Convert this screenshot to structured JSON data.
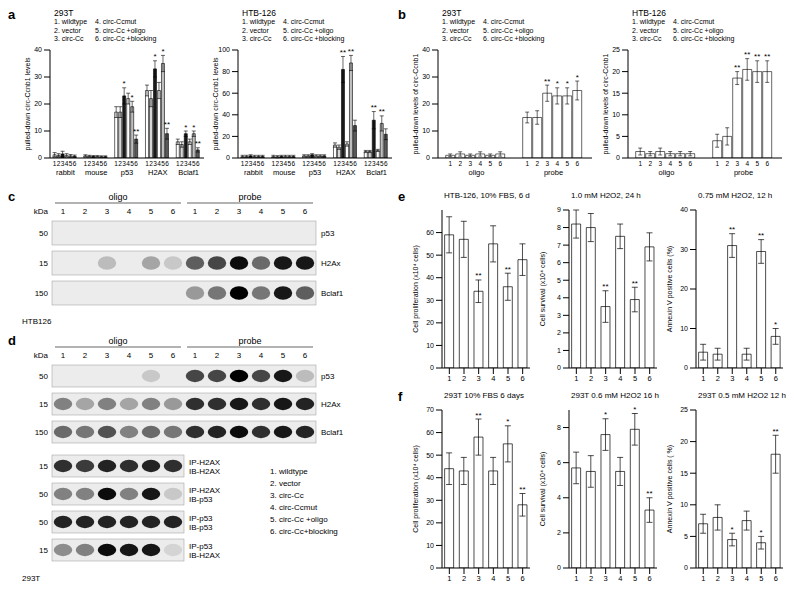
{
  "panel_labels": [
    "a",
    "b",
    "c",
    "d",
    "e",
    "f"
  ],
  "chart_data": [
    {
      "type": "bar",
      "title": "293T",
      "y_label": "pulled-down circ-Ccnb1 levels",
      "grid": false,
      "annotations": [
        "1. wildtype",
        "2. vector",
        "3. circ-Cc",
        "4. circ-Ccmut",
        "5. circ-Cc +oligo",
        "6. circ-Cc +blocking"
      ],
      "categories": [
        "rabbit",
        "mouse",
        "p53",
        "H2AX",
        "Bclaf1"
      ],
      "ylim": [
        0,
        40
      ],
      "yticks": [
        0,
        10,
        20,
        30,
        40
      ],
      "series": [
        {
          "name": "1",
          "color": "#ffffff",
          "values": [
            1.2,
            0.8,
            17,
            25,
            6
          ],
          "errors": [
            0.8,
            0.4,
            2,
            2,
            1
          ],
          "stars": [
            null,
            null,
            null,
            null,
            null
          ]
        },
        {
          "name": "2",
          "color": "#d9d9d9",
          "values": [
            1.0,
            0.7,
            17,
            22,
            5
          ],
          "errors": [
            0.6,
            0.3,
            2,
            3,
            1
          ],
          "stars": [
            null,
            null,
            null,
            null,
            null
          ]
        },
        {
          "name": "3",
          "color": "#1a1a1a",
          "values": [
            1.5,
            0.6,
            23,
            33,
            9
          ],
          "errors": [
            1,
            0.3,
            3,
            3,
            1
          ],
          "stars": [
            null,
            null,
            "*",
            "*",
            "*"
          ]
        },
        {
          "name": "4",
          "color": "#ffffff",
          "values": [
            1.0,
            0.6,
            22,
            25,
            6
          ],
          "errors": [
            0.6,
            0.3,
            2,
            3,
            1
          ],
          "stars": [
            null,
            null,
            null,
            null,
            null
          ]
        },
        {
          "name": "5",
          "color": "#bfbfbf",
          "values": [
            0.8,
            0.5,
            19,
            35,
            9
          ],
          "errors": [
            0.5,
            0.3,
            2,
            3,
            1
          ],
          "stars": [
            null,
            null,
            "*",
            "*",
            "*"
          ]
        },
        {
          "name": "6",
          "color": "#595959",
          "values": [
            0.7,
            0.5,
            7,
            9,
            3
          ],
          "errors": [
            0.4,
            0.3,
            1.5,
            2,
            0.8
          ],
          "stars": [
            null,
            null,
            "**",
            "**",
            "**"
          ]
        }
      ]
    },
    {
      "type": "bar",
      "title": "HTB-126",
      "y_label": "pulled-down circ-Ccnb1 levels",
      "grid": false,
      "annotations": [
        "1. wildtype",
        "2. vector",
        "3. circ-Cc",
        "4. circ-Ccmut",
        "5. circ-Cc +oligo",
        "6. circ-Cc +blocking"
      ],
      "categories": [
        "rabbit",
        "mouse",
        "p53",
        "H2AX",
        "Bclaf1"
      ],
      "ylim": [
        0,
        100
      ],
      "yticks": [
        0,
        20,
        40,
        60,
        80,
        100
      ],
      "series": [
        {
          "name": "1",
          "color": "#ffffff",
          "values": [
            1.5,
            1.5,
            2,
            12,
            6
          ],
          "errors": [
            1,
            1,
            1,
            2,
            1
          ],
          "stars": [
            null,
            null,
            null,
            null,
            null
          ]
        },
        {
          "name": "2",
          "color": "#d9d9d9",
          "values": [
            1.5,
            1.2,
            2,
            10,
            6
          ],
          "errors": [
            1,
            1,
            1,
            2,
            1
          ],
          "stars": [
            null,
            null,
            null,
            null,
            null
          ]
        },
        {
          "name": "3",
          "color": "#1a1a1a",
          "values": [
            2,
            1.5,
            3,
            82,
            35
          ],
          "errors": [
            1,
            1,
            1,
            12,
            8
          ],
          "stars": [
            null,
            null,
            null,
            "**",
            "**"
          ]
        },
        {
          "name": "4",
          "color": "#ffffff",
          "values": [
            1.5,
            1.5,
            2,
            13,
            7
          ],
          "errors": [
            1,
            1,
            1,
            2,
            1
          ],
          "stars": [
            null,
            null,
            null,
            null,
            null
          ]
        },
        {
          "name": "5",
          "color": "#bfbfbf",
          "values": [
            1.5,
            1.5,
            2,
            88,
            32
          ],
          "errors": [
            1,
            1,
            1,
            7,
            7
          ],
          "stars": [
            null,
            null,
            null,
            "**",
            "**"
          ]
        },
        {
          "name": "6",
          "color": "#595959",
          "values": [
            1.5,
            1.5,
            2,
            30,
            22
          ],
          "errors": [
            1,
            1,
            1,
            5,
            5
          ],
          "stars": [
            null,
            null,
            null,
            null,
            null
          ]
        }
      ]
    },
    {
      "type": "bar",
      "title": "293T",
      "y_label": "pulled-down levels of circ-Ccnb1",
      "grid": false,
      "annotations": [
        "1. wildtype",
        "2. vector",
        "3. circ-Cc",
        "4. circ-Ccmut",
        "5. circ-Cc +oligo",
        "6. circ-Cc +blocking"
      ],
      "categories": [
        "oligo",
        "probe"
      ],
      "ylim": [
        0,
        40
      ],
      "yticks": [
        0,
        10,
        20,
        30,
        40
      ],
      "series": [
        {
          "name": "1",
          "color": "#ffffff",
          "values": [
            1,
            15
          ],
          "errors": [
            0.5,
            2
          ],
          "stars": [
            null,
            null
          ]
        },
        {
          "name": "2",
          "color": "#ffffff",
          "values": [
            1.5,
            15
          ],
          "errors": [
            0.8,
            2.5
          ],
          "stars": [
            null,
            null
          ]
        },
        {
          "name": "3",
          "color": "#ffffff",
          "values": [
            1,
            24
          ],
          "errors": [
            0.5,
            3
          ],
          "stars": [
            null,
            "**"
          ]
        },
        {
          "name": "4",
          "color": "#ffffff",
          "values": [
            1.5,
            23
          ],
          "errors": [
            0.8,
            3
          ],
          "stars": [
            null,
            "*"
          ]
        },
        {
          "name": "5",
          "color": "#ffffff",
          "values": [
            1,
            23
          ],
          "errors": [
            0.5,
            3
          ],
          "stars": [
            null,
            "*"
          ]
        },
        {
          "name": "6",
          "color": "#ffffff",
          "values": [
            1.5,
            25
          ],
          "errors": [
            0.8,
            3.5
          ],
          "stars": [
            null,
            "*"
          ]
        }
      ]
    },
    {
      "type": "bar",
      "title": "HTB-126",
      "y_label": "pulled-down levels of circ-Ccnb1",
      "grid": false,
      "annotations": [
        "1. wildtype",
        "2. vector",
        "3. circ-Cc",
        "4. circ-Ccmut",
        "5. circ-Cc +oligo",
        "6. circ-Cc +blocking"
      ],
      "categories": [
        "oligo",
        "probe"
      ],
      "ylim": [
        0,
        25
      ],
      "yticks": [
        0,
        5,
        10,
        15,
        20,
        25
      ],
      "series": [
        {
          "name": "1",
          "color": "#ffffff",
          "values": [
            1.5,
            4
          ],
          "errors": [
            0.8,
            1.5
          ],
          "stars": [
            null,
            null
          ]
        },
        {
          "name": "2",
          "color": "#ffffff",
          "values": [
            1,
            5
          ],
          "errors": [
            0.5,
            2
          ],
          "stars": [
            null,
            null
          ]
        },
        {
          "name": "3",
          "color": "#ffffff",
          "values": [
            1.5,
            18.5
          ],
          "errors": [
            0.8,
            1.5
          ],
          "stars": [
            null,
            "**"
          ]
        },
        {
          "name": "4",
          "color": "#ffffff",
          "values": [
            1,
            20.5
          ],
          "errors": [
            0.5,
            2.5
          ],
          "stars": [
            null,
            "**"
          ]
        },
        {
          "name": "5",
          "color": "#ffffff",
          "values": [
            1,
            20
          ],
          "errors": [
            0.5,
            2.5
          ],
          "stars": [
            null,
            "**"
          ]
        },
        {
          "name": "6",
          "color": "#ffffff",
          "values": [
            1,
            20
          ],
          "errors": [
            0.5,
            2.5
          ],
          "stars": [
            null,
            "**"
          ]
        }
      ]
    },
    {
      "type": "bar",
      "title": "HTB-126, 10% FBS, 6 d",
      "y_label": "Cell proliferation (x10⁴ cells)",
      "grid": false,
      "color": "#ffffff",
      "categories": [
        "1",
        "2",
        "3",
        "4",
        "5",
        "6"
      ],
      "ylim": [
        0,
        70
      ],
      "yticks": [
        0,
        10,
        20,
        30,
        40,
        50,
        60
      ],
      "values": [
        59,
        57,
        34,
        55,
        36,
        48
      ],
      "errors": [
        8,
        8,
        5,
        8,
        6,
        7
      ],
      "stars": [
        null,
        null,
        "**",
        null,
        "**",
        null
      ]
    },
    {
      "type": "bar",
      "title": "1.0 mM H2O2, 24 h",
      "y_label": "Cell survival (x10⁴ cells)",
      "grid": false,
      "color": "#ffffff",
      "categories": [
        "1",
        "2",
        "3",
        "4",
        "5",
        "6"
      ],
      "ylim": [
        0,
        9
      ],
      "yticks": [
        0,
        1,
        2,
        3,
        4,
        5,
        6,
        7,
        8,
        9
      ],
      "values": [
        8.2,
        8.0,
        3.5,
        7.5,
        3.9,
        6.9
      ],
      "errors": [
        0.8,
        0.8,
        0.9,
        0.7,
        0.7,
        0.8
      ],
      "stars": [
        null,
        null,
        "**",
        null,
        "**",
        null
      ]
    },
    {
      "type": "bar",
      "title": "0.75 mM H2O2, 12 h",
      "y_label": "Annexin V positive cells (%)",
      "grid": false,
      "color": "#ffffff",
      "categories": [
        "1",
        "2",
        "3",
        "4",
        "5",
        "6"
      ],
      "ylim": [
        0,
        40
      ],
      "yticks": [
        0,
        10,
        20,
        30,
        40
      ],
      "values": [
        4,
        3.5,
        31,
        3.5,
        29.5,
        8
      ],
      "errors": [
        2,
        1.5,
        3,
        1.5,
        3,
        2
      ],
      "stars": [
        null,
        null,
        "**",
        null,
        "**",
        "*"
      ]
    },
    {
      "type": "bar",
      "title": "293T 10% FBS 6 days",
      "y_label": "Cell proliferation (x10⁴ cells)",
      "grid": false,
      "color": "#ffffff",
      "categories": [
        "1",
        "2",
        "3",
        "4",
        "5",
        "6"
      ],
      "ylim": [
        0,
        70
      ],
      "yticks": [
        0,
        10,
        20,
        30,
        40,
        50,
        60,
        70
      ],
      "values": [
        44,
        43,
        58,
        43,
        55,
        28
      ],
      "errors": [
        7,
        6,
        8,
        6,
        8,
        5
      ],
      "stars": [
        null,
        null,
        "**",
        null,
        "*",
        "**"
      ]
    },
    {
      "type": "bar",
      "title": "293T 0.6 mM H2O2 16 h",
      "y_label": "Cell survival (x10⁴ cells)",
      "grid": false,
      "color": "#ffffff",
      "categories": [
        "1",
        "2",
        "3",
        "4",
        "5",
        "6"
      ],
      "ylim": [
        0,
        9
      ],
      "yticks": [
        0,
        2,
        4,
        6,
        8
      ],
      "values": [
        5.7,
        5.5,
        7.6,
        5.5,
        7.9,
        3.3
      ],
      "errors": [
        0.9,
        0.9,
        0.9,
        0.8,
        0.9,
        0.7
      ],
      "stars": [
        null,
        null,
        "*",
        null,
        "*",
        "**"
      ]
    },
    {
      "type": "bar",
      "title": "293T 0.5 mM H2O2 12 h",
      "y_label": "Annexin V positive cells ( %)",
      "grid": false,
      "color": "#ffffff",
      "categories": [
        "1",
        "2",
        "3",
        "4",
        "5",
        "6"
      ],
      "ylim": [
        0,
        25
      ],
      "yticks": [
        0,
        5,
        10,
        15,
        20,
        25
      ],
      "values": [
        7,
        8,
        4.5,
        7.5,
        4,
        18
      ],
      "errors": [
        1.5,
        2,
        1,
        1.5,
        1,
        3
      ],
      "stars": [
        null,
        null,
        "*",
        null,
        "*",
        "**"
      ]
    }
  ],
  "blots": [
    {
      "title": "HTB126",
      "unit_label": "kDa",
      "lane_groups": [
        "oligo",
        "probe"
      ],
      "lanes": [
        "1",
        "2",
        "3",
        "4",
        "5",
        "6"
      ],
      "rows": [
        {
          "kda": 50,
          "label": [
            "p53"
          ],
          "intensities": [
            0,
            0,
            0,
            0,
            0,
            0,
            0,
            0,
            0,
            0,
            0,
            0
          ]
        },
        {
          "kda": 15,
          "label": [
            "H2Ax"
          ],
          "intensities": [
            0,
            0,
            0.2,
            0,
            0.3,
            0.15,
            0.6,
            0.7,
            0.95,
            0.55,
            0.9,
            0.9
          ]
        },
        {
          "kda": 150,
          "label": [
            "Bclaf1"
          ],
          "intensities": [
            0,
            0,
            0,
            0,
            0,
            0,
            0.35,
            0.5,
            1,
            0.5,
            0.9,
            0.6
          ]
        }
      ]
    },
    {
      "title": "293T",
      "unit_label": "kDa",
      "lane_groups": [
        "oligo",
        "probe"
      ],
      "lanes": [
        "1",
        "2",
        "3",
        "4",
        "5",
        "6"
      ],
      "rows": [
        {
          "kda": 50,
          "label": [
            "p53"
          ],
          "intensities": [
            0,
            0,
            0,
            0,
            0.15,
            0,
            0.7,
            0.7,
            1,
            0.7,
            0.9,
            0.2
          ]
        },
        {
          "kda": 15,
          "label": [
            "H2Ax"
          ],
          "intensities": [
            0.45,
            0.3,
            0.45,
            0.3,
            0.45,
            0.35,
            0.8,
            0.8,
            0.9,
            0.8,
            0.9,
            0.85
          ]
        },
        {
          "kda": 150,
          "label": [
            "Bclaf1"
          ],
          "intensities": [
            0.55,
            0.5,
            0.65,
            0.45,
            0.55,
            0.5,
            0.8,
            0.85,
            0.95,
            0.8,
            0.9,
            0.85
          ]
        }
      ],
      "ip_rows": [
        {
          "kda": 15,
          "label": [
            "IP-H2AX",
            "IB-H2AX"
          ],
          "intensities": [
            0.8,
            0.75,
            0.85,
            0.8,
            0.85,
            0.8
          ]
        },
        {
          "kda": 50,
          "label": [
            "IP-H2AX",
            "IB-p53"
          ],
          "intensities": [
            0.45,
            0.45,
            0.95,
            0.45,
            0.9,
            0.15
          ]
        },
        {
          "kda": 50,
          "label": [
            "IP-p53",
            "IB-p53"
          ],
          "intensities": [
            0.85,
            0.85,
            0.85,
            0.85,
            0.85,
            0.85
          ]
        },
        {
          "kda": 15,
          "label": [
            "IP-p53",
            "IB-H2AX"
          ],
          "intensities": [
            0.4,
            0.45,
            0.95,
            0.9,
            0.9,
            0.1
          ]
        }
      ],
      "annotations": [
        "1. wildtype",
        "2. vector",
        "3. circ-Cc",
        "4. circ-Ccmut",
        "5. circ-Cc +oligo",
        "6. circ-Cc+blocking"
      ]
    }
  ]
}
